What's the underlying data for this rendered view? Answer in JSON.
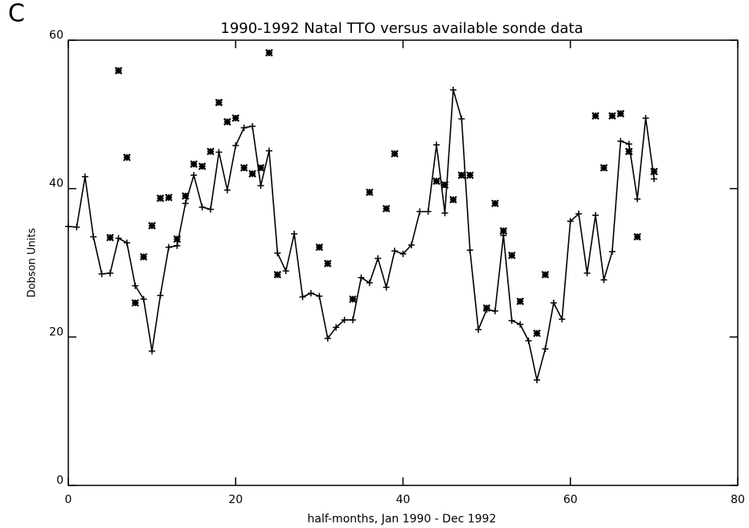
{
  "chart_data": {
    "type": "line",
    "panel_label": "C",
    "title": "1990-1992 Natal TTO versus available sonde data",
    "xlabel": "half-months, Jan 1990 - Dec 1992",
    "ylabel": "Dobson Units",
    "xlim": [
      0,
      80
    ],
    "ylim": [
      0,
      60
    ],
    "xticks": [
      0,
      20,
      40,
      60,
      80
    ],
    "yticks": [
      0,
      20,
      40,
      60
    ],
    "series": [
      {
        "color": "#000000",
        "marker": "plus",
        "line": true,
        "x": [
          0,
          1,
          2,
          3,
          4,
          5,
          6,
          7,
          8,
          9,
          10,
          11,
          12,
          13,
          14,
          15,
          16,
          17,
          18,
          19,
          20,
          21,
          22,
          23,
          24,
          25,
          26,
          27,
          28,
          29,
          30,
          31,
          32,
          33,
          34,
          35,
          36,
          37,
          38,
          39,
          40,
          41,
          42,
          43,
          44,
          45,
          46,
          47,
          48,
          49,
          50,
          51,
          52,
          53,
          54,
          55,
          56,
          57,
          58,
          59,
          60,
          61,
          62,
          63,
          64,
          65,
          66,
          67,
          68,
          69,
          70
        ],
        "values": [
          34.9,
          34.8,
          41.6,
          33.5,
          28.5,
          28.6,
          33.3,
          32.7,
          26.9,
          25.1,
          18.1,
          25.6,
          32.1,
          32.3,
          38.0,
          41.8,
          37.5,
          37.2,
          44.9,
          39.8,
          45.8,
          48.2,
          48.4,
          40.4,
          45.1,
          31.3,
          28.9,
          33.9,
          25.4,
          25.9,
          25.5,
          19.8,
          21.3,
          22.3,
          22.3,
          28.0,
          27.3,
          30.6,
          26.7,
          31.6,
          31.2,
          32.4,
          36.9,
          36.9,
          45.9,
          36.7,
          53.3,
          49.4,
          31.7,
          21.0,
          23.7,
          23.5,
          33.7,
          22.2,
          21.7,
          19.5,
          14.2,
          18.4,
          24.6,
          22.4,
          35.6,
          36.6,
          28.6,
          36.4,
          27.7,
          31.5,
          46.4,
          46.0,
          38.6,
          49.5,
          41.3
        ]
      },
      {
        "color": "#000000",
        "marker": "asterisk",
        "line": false,
        "x": [
          5,
          6,
          7,
          8,
          9,
          10,
          11,
          12,
          13,
          14,
          15,
          16,
          17,
          18,
          19,
          20,
          21,
          22,
          23,
          24,
          25,
          30,
          31,
          34,
          36,
          38,
          39,
          44,
          45,
          46,
          47,
          48,
          50,
          51,
          52,
          53,
          54,
          56,
          57,
          63,
          64,
          65,
          66,
          67,
          68,
          70
        ],
        "values": [
          33.4,
          55.9,
          44.2,
          24.6,
          30.8,
          35.0,
          38.7,
          38.8,
          33.2,
          39.0,
          43.3,
          43.0,
          45.0,
          51.6,
          49.0,
          49.5,
          42.8,
          42.0,
          42.8,
          58.3,
          28.4,
          32.1,
          29.9,
          25.1,
          39.5,
          37.3,
          44.7,
          41.0,
          40.5,
          38.5,
          41.8,
          41.8,
          23.9,
          38.0,
          34.3,
          31.0,
          24.8,
          20.5,
          28.4,
          49.8,
          42.8,
          49.8,
          50.1,
          45.0,
          33.5,
          42.3
        ]
      }
    ]
  }
}
